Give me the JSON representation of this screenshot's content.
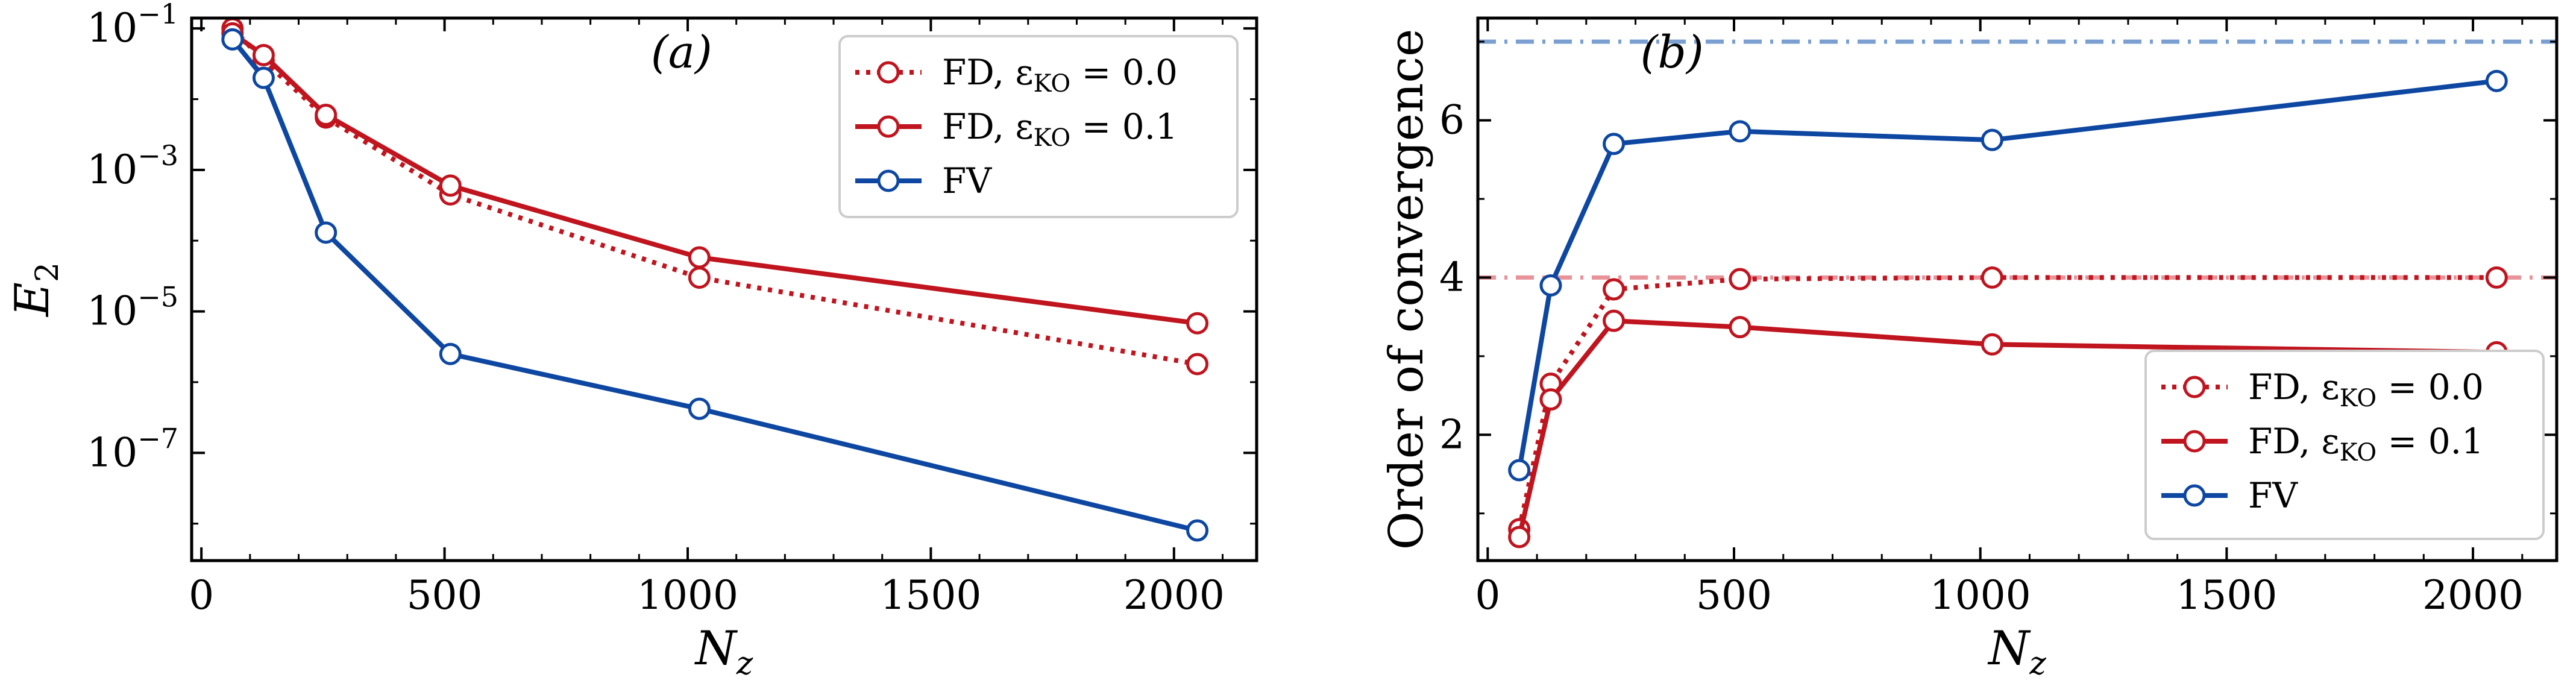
{
  "chart_data": [
    {
      "id": "a",
      "type": "line",
      "panel_label": "(a)",
      "xlabel": "N_z",
      "ylabel": "E_2",
      "yscale": "log",
      "xlim": [
        -20,
        2170
      ],
      "ylim": [
        3e-09,
        0.14
      ],
      "grid": false,
      "legend_position": "top-right",
      "x_ticks": [
        0,
        500,
        1000,
        1500,
        2000
      ],
      "x_tick_labels": [
        "0",
        "500",
        "1000",
        "1500",
        "2000"
      ],
      "y_ticks": [
        0.1,
        0.001,
        1e-05,
        1e-07
      ],
      "y_tick_labels": [
        {
          "base": "10",
          "exp": "−1"
        },
        {
          "base": "10",
          "exp": "−3"
        },
        {
          "base": "10",
          "exp": "−5"
        },
        {
          "base": "10",
          "exp": "−7"
        }
      ],
      "series": [
        {
          "name": "FD, εKO = 0.0",
          "legend_main": "FD,  ε",
          "legend_sub": "KO",
          "legend_tail": " = 0.0",
          "color": "#c0141e",
          "style": "dotted",
          "x": [
            64,
            128,
            256,
            512,
            1024,
            2048
          ],
          "y": [
            0.1,
            0.035,
            0.0055,
            0.00045,
            3e-05,
            1.8e-06
          ]
        },
        {
          "name": "FD, εKO = 0.1",
          "legend_main": "FD,  ε",
          "legend_sub": "KO",
          "legend_tail": " = 0.1",
          "color": "#c0141e",
          "style": "solid",
          "x": [
            64,
            128,
            256,
            512,
            1024,
            2048
          ],
          "y": [
            0.085,
            0.042,
            0.006,
            0.0006,
            5.8e-05,
            6.8e-06
          ]
        },
        {
          "name": "FV",
          "legend_main": "FV",
          "legend_sub": "",
          "legend_tail": "",
          "color": "#0d47a1",
          "style": "solid",
          "x": [
            64,
            128,
            256,
            512,
            1024,
            2048
          ],
          "y": [
            0.07,
            0.02,
            0.00013,
            2.5e-06,
            4.2e-07,
            8e-09
          ]
        }
      ],
      "reference_lines": []
    },
    {
      "id": "b",
      "type": "line",
      "panel_label": "(b)",
      "xlabel": "N_z",
      "ylabel": "Order of convergence",
      "yscale": "linear",
      "xlim": [
        -20,
        2170
      ],
      "ylim": [
        0.4,
        7.3
      ],
      "grid": false,
      "legend_position": "lower-right",
      "x_ticks": [
        0,
        500,
        1000,
        1500,
        2000
      ],
      "x_tick_labels": [
        "0",
        "500",
        "1000",
        "1500",
        "2000"
      ],
      "y_ticks": [
        2,
        4,
        6
      ],
      "y_tick_labels": [
        {
          "base": "2",
          "exp": ""
        },
        {
          "base": "4",
          "exp": ""
        },
        {
          "base": "6",
          "exp": ""
        }
      ],
      "series": [
        {
          "name": "FD, εKO = 0.0",
          "legend_main": "FD,  ε",
          "legend_sub": "KO",
          "legend_tail": " = 0.0",
          "color": "#c0141e",
          "style": "dotted",
          "x": [
            64,
            128,
            256,
            512,
            1024,
            2048
          ],
          "y": [
            0.8,
            2.65,
            3.85,
            3.98,
            4.0,
            4.0
          ]
        },
        {
          "name": "FD, εKO = 0.1",
          "legend_main": "FD,  ε",
          "legend_sub": "KO",
          "legend_tail": " = 0.1",
          "color": "#c0141e",
          "style": "solid",
          "x": [
            64,
            128,
            256,
            512,
            1024,
            2048
          ],
          "y": [
            0.7,
            2.45,
            3.45,
            3.37,
            3.15,
            3.05
          ]
        },
        {
          "name": "FV",
          "legend_main": "FV",
          "legend_sub": "",
          "legend_tail": "",
          "color": "#0d47a1",
          "style": "solid",
          "x": [
            64,
            128,
            256,
            512,
            1024,
            2048
          ],
          "y": [
            1.55,
            3.9,
            5.7,
            5.86,
            5.75,
            6.5
          ]
        }
      ],
      "reference_lines": [
        {
          "y": 7,
          "color": "#7a9fd0",
          "style": "dashdot"
        },
        {
          "y": 4,
          "color": "#e8939a",
          "style": "dashdot"
        }
      ]
    }
  ]
}
